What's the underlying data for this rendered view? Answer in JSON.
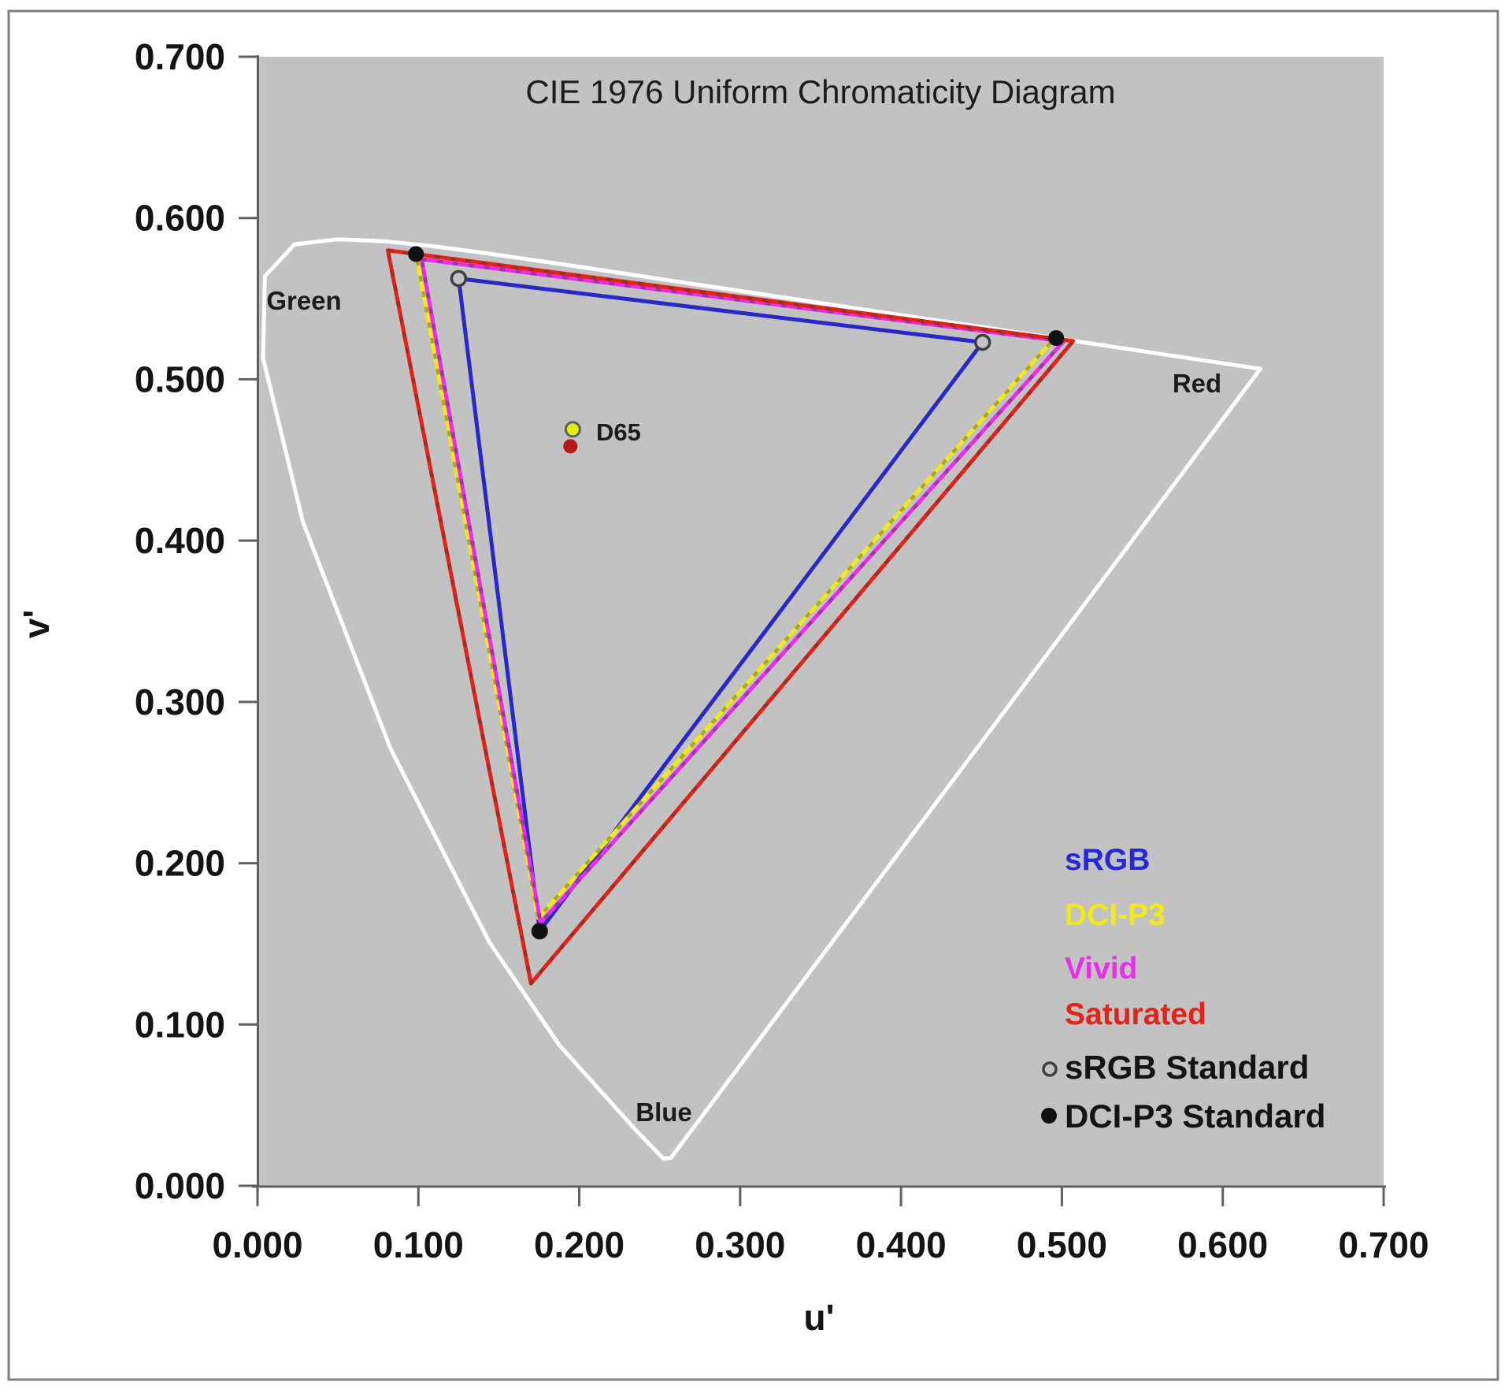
{
  "title": "CIE 1976 Uniform Chromaticity Diagram",
  "axes": {
    "x": {
      "label": "u'",
      "ticks": [
        {
          "v": 0.0,
          "label": "0.000"
        },
        {
          "v": 0.1,
          "label": "0.100"
        },
        {
          "v": 0.2,
          "label": "0.200"
        },
        {
          "v": 0.3,
          "label": "0.300"
        },
        {
          "v": 0.4,
          "label": "0.400"
        },
        {
          "v": 0.5,
          "label": "0.500"
        },
        {
          "v": 0.6,
          "label": "0.600"
        },
        {
          "v": 0.7,
          "label": "0.700"
        }
      ]
    },
    "y": {
      "label": "v'",
      "ticks": [
        {
          "v": 0.0,
          "label": "0.000"
        },
        {
          "v": 0.1,
          "label": "0.100"
        },
        {
          "v": 0.2,
          "label": "0.200"
        },
        {
          "v": 0.3,
          "label": "0.300"
        },
        {
          "v": 0.4,
          "label": "0.400"
        },
        {
          "v": 0.5,
          "label": "0.500"
        },
        {
          "v": 0.6,
          "label": "0.600"
        },
        {
          "v": 0.7,
          "label": "0.700"
        }
      ]
    }
  },
  "region_labels": {
    "green": "Green",
    "red": "Red",
    "blue": "Blue"
  },
  "white_point_label": "D65",
  "legend": {
    "items": [
      {
        "label": "sRGB",
        "color": "#2626DC"
      },
      {
        "label": "DCI-P3",
        "color": "#F2EA16"
      },
      {
        "label": "Vivid",
        "color": "#EA2DEA"
      },
      {
        "label": "Saturated",
        "color": "#E3221A"
      },
      {
        "label": "sRGB Standard",
        "color": "#141414",
        "marker": "open-circle"
      },
      {
        "label": "DCI-P3 Standard",
        "color": "#141414",
        "marker": "dot"
      }
    ]
  },
  "colors": {
    "plot_bg": "#C2C2C2",
    "frame": "#7F7F7F",
    "axis": "#5F5F5F",
    "srgb": "#2626DC",
    "dci_p3": "#F2EA16",
    "vivid": "#EA2DEA",
    "saturated": "#E3221A",
    "locus": "#FFFFFF",
    "srgb_std_marker": "#3F3F3F",
    "dci_std_marker": "#101010",
    "d65_fill": "#E4EE0C",
    "white_measured": "#B51616"
  },
  "chart_data": {
    "type": "line",
    "title": "CIE 1976 Uniform Chromaticity Diagram",
    "xlabel": "u'",
    "ylabel": "v'",
    "xlim": [
      0,
      0.7
    ],
    "ylim": [
      0,
      0.7
    ],
    "grid": false,
    "legend_position": "lower right inside plot",
    "series": [
      {
        "name": "sRGB",
        "kind": "gamut",
        "color": "#2626DC",
        "points": [
          [
            0.125,
            0.5625
          ],
          [
            0.4507,
            0.5229
          ],
          [
            0.1754,
            0.1579
          ]
        ]
      },
      {
        "name": "DCI-P3",
        "kind": "gamut",
        "color": "#F2EA16",
        "points": [
          [
            0.0988,
            0.577
          ],
          [
            0.4945,
            0.5245
          ],
          [
            0.1745,
            0.166
          ]
        ]
      },
      {
        "name": "Vivid",
        "kind": "gamut",
        "color": "#EA2DEA",
        "points": [
          [
            0.102,
            0.5745
          ],
          [
            0.501,
            0.5235
          ],
          [
            0.176,
            0.163
          ]
        ]
      },
      {
        "name": "Saturated",
        "kind": "gamut",
        "color": "#E3221A",
        "points": [
          [
            0.081,
            0.58
          ],
          [
            0.507,
            0.5237
          ],
          [
            0.17,
            0.1255
          ]
        ]
      },
      {
        "name": "sRGB Standard",
        "kind": "markers",
        "marker": "open-circle",
        "points": [
          [
            0.125,
            0.5625
          ],
          [
            0.4507,
            0.5229
          ],
          [
            0.1754,
            0.1579
          ]
        ]
      },
      {
        "name": "DCI-P3 Standard",
        "kind": "markers",
        "marker": "dot",
        "points": [
          [
            0.0985,
            0.5777
          ],
          [
            0.4964,
            0.5256
          ],
          [
            0.1754,
            0.1579
          ]
        ]
      },
      {
        "name": "D65 white point",
        "kind": "markers",
        "marker": "d65",
        "points": [
          [
            0.196,
            0.469
          ]
        ]
      },
      {
        "name": "measured white point",
        "kind": "markers",
        "marker": "red-dot",
        "points": [
          [
            0.1945,
            0.4585
          ]
        ]
      }
    ],
    "spectral_locus": [
      [
        0.2569,
        0.0172
      ],
      [
        0.2522,
        0.0169
      ],
      [
        0.2347,
        0.035
      ],
      [
        0.1877,
        0.0871
      ],
      [
        0.1441,
        0.151
      ],
      [
        0.0828,
        0.2708
      ],
      [
        0.0282,
        0.4117
      ],
      [
        0.0035,
        0.5131
      ],
      [
        0.0046,
        0.5639
      ],
      [
        0.0231,
        0.5837
      ],
      [
        0.0501,
        0.5868
      ],
      [
        0.0792,
        0.5856
      ],
      [
        0.1127,
        0.5821
      ],
      [
        0.1531,
        0.5766
      ],
      [
        0.2026,
        0.5694
      ],
      [
        0.2623,
        0.5604
      ],
      [
        0.3315,
        0.5501
      ],
      [
        0.4035,
        0.5393
      ],
      [
        0.4691,
        0.5296
      ],
      [
        0.5203,
        0.5219
      ],
      [
        0.5565,
        0.5165
      ],
      [
        0.6005,
        0.5099
      ],
      [
        0.6234,
        0.5065
      ]
    ]
  }
}
